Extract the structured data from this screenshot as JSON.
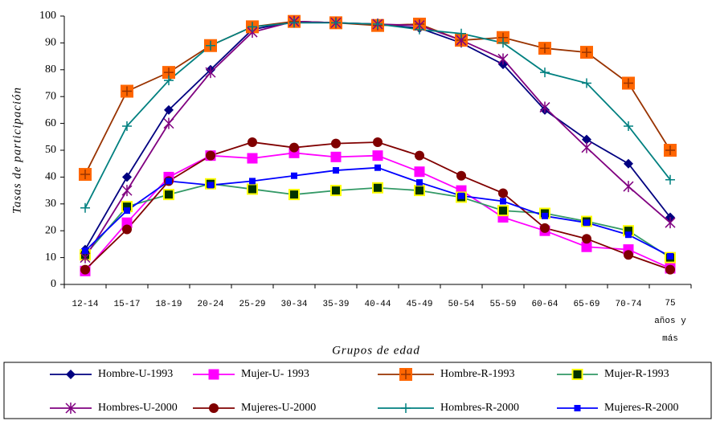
{
  "chart_data": {
    "type": "line",
    "x_label": "Grupos de edad",
    "y_label": "Tasas de participación",
    "categories": [
      "12-14",
      "15-17",
      "18-19",
      "20-24",
      "25-29",
      "30-34",
      "35-39",
      "40-44",
      "45-49",
      "50-54",
      "55-59",
      "60-64",
      "65-69",
      "70-74",
      "75 años y más"
    ],
    "ylim": [
      0,
      100
    ],
    "yticks": [
      0,
      10,
      20,
      30,
      40,
      50,
      60,
      70,
      80,
      90,
      100
    ],
    "series": [
      {
        "name": "Hombre-U-1993",
        "color": "#000080",
        "marker": "diamond",
        "marker_fill": "#000080",
        "values": [
          13,
          40,
          65,
          80,
          95,
          98,
          97.5,
          97,
          95.5,
          90,
          82,
          65,
          54,
          45,
          25
        ]
      },
      {
        "name": "Mujer-U- 1993",
        "color": "#ff00ff",
        "marker": "square",
        "marker_fill": "#ff00ff",
        "values": [
          5,
          23,
          40,
          48,
          47,
          49,
          47.5,
          48,
          42,
          35,
          25,
          20,
          14,
          13,
          6
        ]
      },
      {
        "name": "Hombre-R-1993",
        "color": "#993300",
        "marker": "plus-square",
        "marker_fill": "#ff6600",
        "values": [
          41,
          72,
          79,
          89,
          96,
          98,
          97.5,
          96.5,
          97,
          91,
          92,
          88,
          86.5,
          75,
          50
        ]
      },
      {
        "name": "Mujer-R-1993",
        "color": "#339966",
        "marker": "square",
        "marker_fill": "#003300",
        "marker_stroke": "#ffff00",
        "values": [
          11,
          29,
          33.5,
          37.5,
          35.5,
          33.5,
          35,
          36,
          35,
          32.5,
          27.5,
          26.5,
          23.5,
          20,
          10
        ]
      },
      {
        "name": "Hombres-U-2000",
        "color": "#800080",
        "marker": "asterisk",
        "marker_fill": "#800080",
        "values": [
          10,
          35,
          60,
          79,
          94,
          98,
          97.5,
          97,
          96.5,
          91,
          84,
          66,
          51,
          36.5,
          23
        ]
      },
      {
        "name": "Mujeres-U-2000",
        "color": "#800000",
        "marker": "circle",
        "marker_fill": "#800000",
        "values": [
          5.5,
          20.5,
          38.5,
          48,
          53,
          51,
          52.5,
          53,
          48,
          40.5,
          34,
          21,
          17,
          11,
          5.5
        ]
      },
      {
        "name": "Hombres-R-2000",
        "color": "#008080",
        "marker": "plus",
        "marker_fill": "#008080",
        "values": [
          28.5,
          59,
          76,
          89,
          96,
          97.5,
          97.5,
          97,
          95,
          93.5,
          90,
          79,
          75,
          59,
          39
        ]
      },
      {
        "name": "Mujeres-R-2000",
        "color": "#0000ff",
        "marker": "small-square",
        "marker_fill": "#0000ff",
        "values": [
          12.5,
          27.5,
          38.5,
          37,
          38.5,
          40.5,
          42.5,
          43.5,
          38,
          33,
          31,
          25.5,
          23,
          18.5,
          10.5
        ]
      }
    ]
  }
}
